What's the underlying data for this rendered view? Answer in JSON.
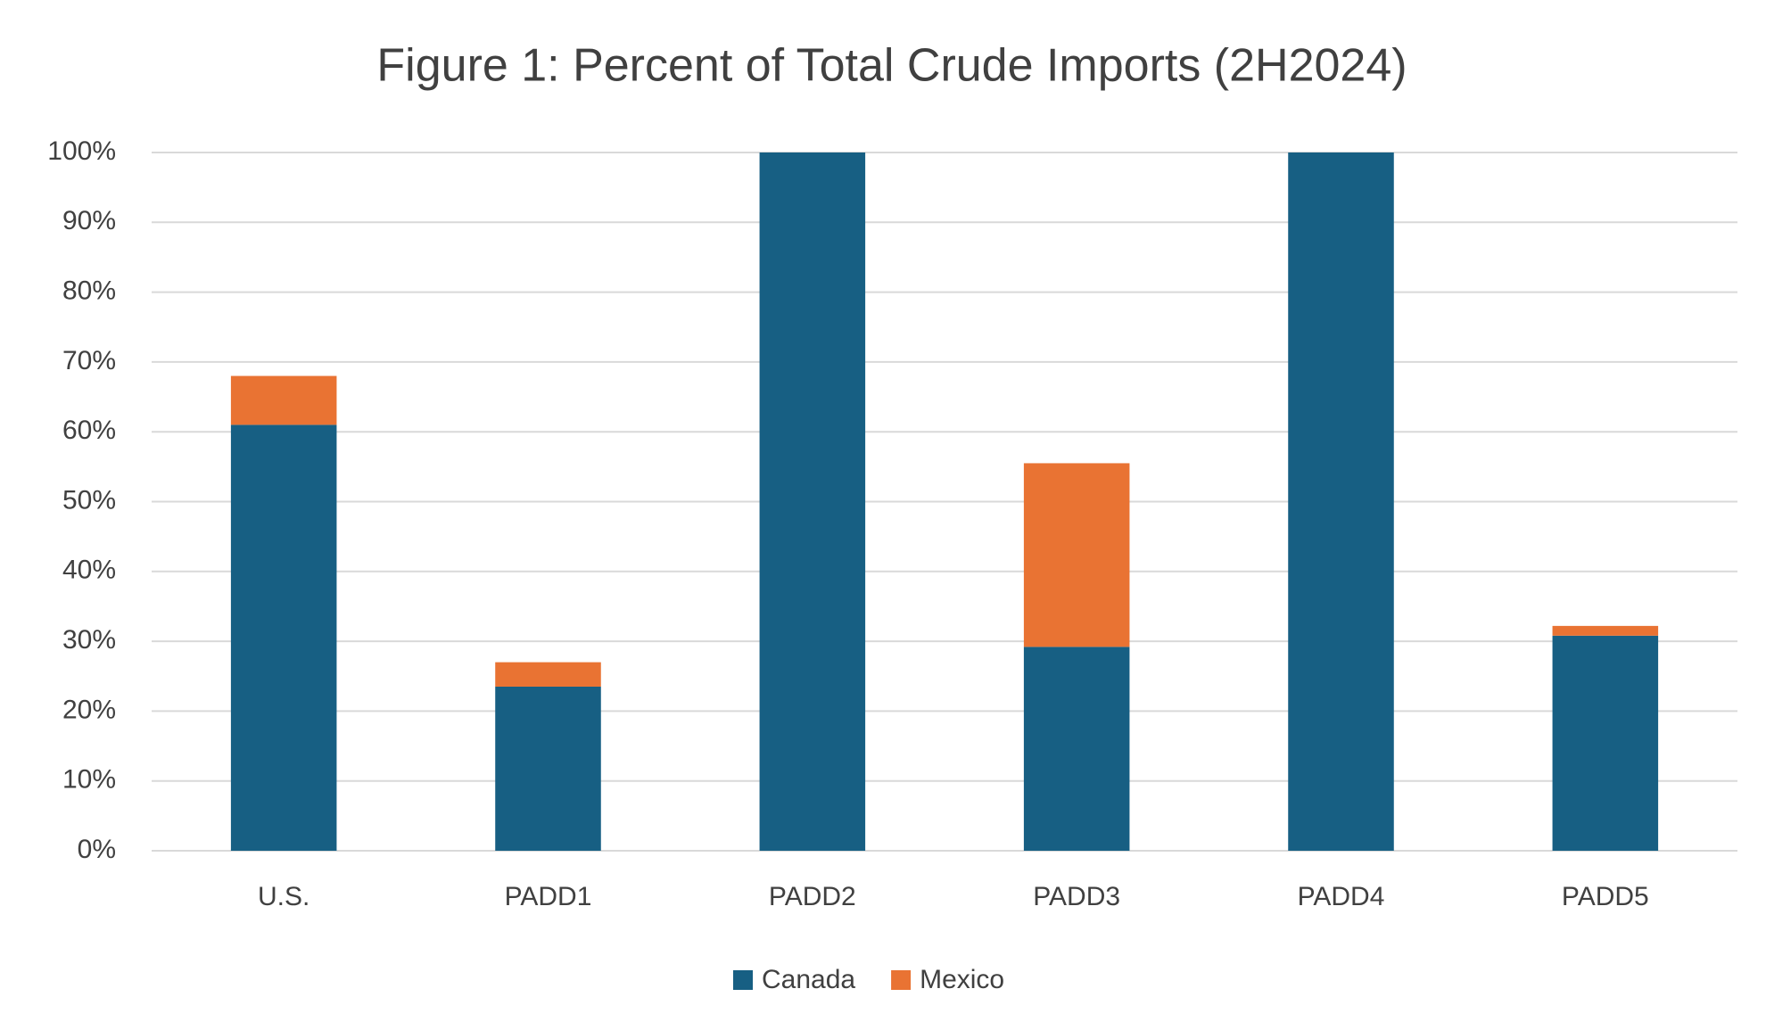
{
  "chart_data": {
    "type": "stacked_bar",
    "title": "Figure 1: Percent of Total Crude Imports (2H2024)",
    "categories": [
      "U.S.",
      "PADD1",
      "PADD2",
      "PADD3",
      "PADD4",
      "PADD5"
    ],
    "series": [
      {
        "name": "Canada",
        "color": "#175f83",
        "values": [
          61,
          23.5,
          100,
          29.2,
          100,
          30.8
        ]
      },
      {
        "name": "Mexico",
        "color": "#e97333",
        "values": [
          7,
          3.5,
          0,
          26.3,
          0,
          1.4
        ]
      }
    ],
    "ylim": [
      0,
      100
    ],
    "yticks": [
      {
        "value": 0,
        "label": "0%"
      },
      {
        "value": 10,
        "label": "10%"
      },
      {
        "value": 20,
        "label": "20%"
      },
      {
        "value": 30,
        "label": "30%"
      },
      {
        "value": 40,
        "label": "40%"
      },
      {
        "value": 50,
        "label": "50%"
      },
      {
        "value": 60,
        "label": "60%"
      },
      {
        "value": 70,
        "label": "70%"
      },
      {
        "value": 80,
        "label": "80%"
      },
      {
        "value": 90,
        "label": "90%"
      },
      {
        "value": 100,
        "label": "100%"
      }
    ],
    "grid": true,
    "legend": "bottom"
  }
}
